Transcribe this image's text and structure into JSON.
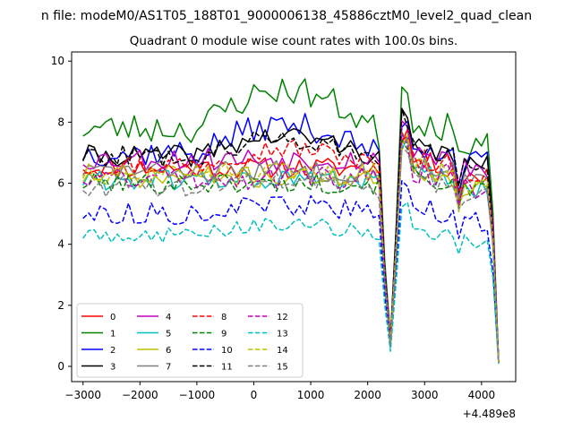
{
  "chart_data": {
    "type": "line",
    "suptitle": "n file: modeM0/AS1T05_188T01_9000006138_45886cztM0_level2_quad_clean",
    "title": "Quadrant 0 module wise count rates with 100.0s bins.",
    "xlabel": "",
    "ylabel": "",
    "x_offset_label": "+4.489e8",
    "xlim": [
      -3200,
      4600
    ],
    "ylim": [
      -0.5,
      10.3
    ],
    "xticks": [
      -3000,
      -2000,
      -1000,
      0,
      1000,
      2000,
      3000,
      4000
    ],
    "xtick_labels": [
      "−3000",
      "−2000",
      "−1000",
      "0",
      "1000",
      "2000",
      "3000",
      "4000"
    ],
    "yticks": [
      0,
      2,
      4,
      6,
      8,
      10
    ],
    "ytick_labels": [
      "0",
      "2",
      "4",
      "6",
      "8",
      "10"
    ],
    "grid": false,
    "legend_placement": "lower-left",
    "legend_columns": 4,
    "x_start": -3000,
    "x_step": 100,
    "x_count": 74,
    "series": [
      {
        "name": "0",
        "color": "#ff0000",
        "dash": "solid",
        "base": 6.5,
        "amp": 0.35,
        "seed": 11
      },
      {
        "name": "1",
        "color": "#008000",
        "dash": "solid",
        "base": 7.8,
        "amp": 0.5,
        "seed": 23,
        "trend": 1.4
      },
      {
        "name": "2",
        "color": "#0000ff",
        "dash": "solid",
        "base": 7.0,
        "amp": 0.45,
        "seed": 37,
        "trend": 1.0
      },
      {
        "name": "3",
        "color": "#000000",
        "dash": "solid",
        "base": 6.9,
        "amp": 0.35,
        "seed": 41,
        "trend": 0.7
      },
      {
        "name": "4",
        "color": "#bf00bf",
        "dash": "solid",
        "base": 6.8,
        "amp": 0.4,
        "seed": 53
      },
      {
        "name": "5",
        "color": "#00bfbf",
        "dash": "solid",
        "base": 6.1,
        "amp": 0.35,
        "seed": 61
      },
      {
        "name": "6",
        "color": "#bfbf00",
        "dash": "solid",
        "base": 6.2,
        "amp": 0.35,
        "seed": 71
      },
      {
        "name": "7",
        "color": "#808080",
        "dash": "solid",
        "base": 6.4,
        "amp": 0.35,
        "seed": 83
      },
      {
        "name": "8",
        "color": "#ff0000",
        "dash": "dashed",
        "base": 6.6,
        "amp": 0.35,
        "seed": 97,
        "trend": 0.6
      },
      {
        "name": "9",
        "color": "#008000",
        "dash": "dashed",
        "base": 6.0,
        "amp": 0.35,
        "seed": 101
      },
      {
        "name": "10",
        "color": "#0000ff",
        "dash": "dashed",
        "base": 5.0,
        "amp": 0.35,
        "seed": 113,
        "trend": 0.3
      },
      {
        "name": "11",
        "color": "#000000",
        "dash": "dashed",
        "base": 6.9,
        "amp": 0.35,
        "seed": 127,
        "trend": 0.6
      },
      {
        "name": "12",
        "color": "#bf00bf",
        "dash": "dashed",
        "base": 6.2,
        "amp": 0.4,
        "seed": 131
      },
      {
        "name": "13",
        "color": "#00bfbf",
        "dash": "dashed",
        "base": 4.3,
        "amp": 0.25,
        "seed": 149,
        "trend": 0.4
      },
      {
        "name": "14",
        "color": "#bfbf00",
        "dash": "dashed",
        "base": 6.3,
        "amp": 0.35,
        "seed": 151
      },
      {
        "name": "15",
        "color": "#808080",
        "dash": "dashed",
        "base": 5.9,
        "amp": 0.35,
        "seed": 163,
        "trend": 0.3
      }
    ]
  }
}
